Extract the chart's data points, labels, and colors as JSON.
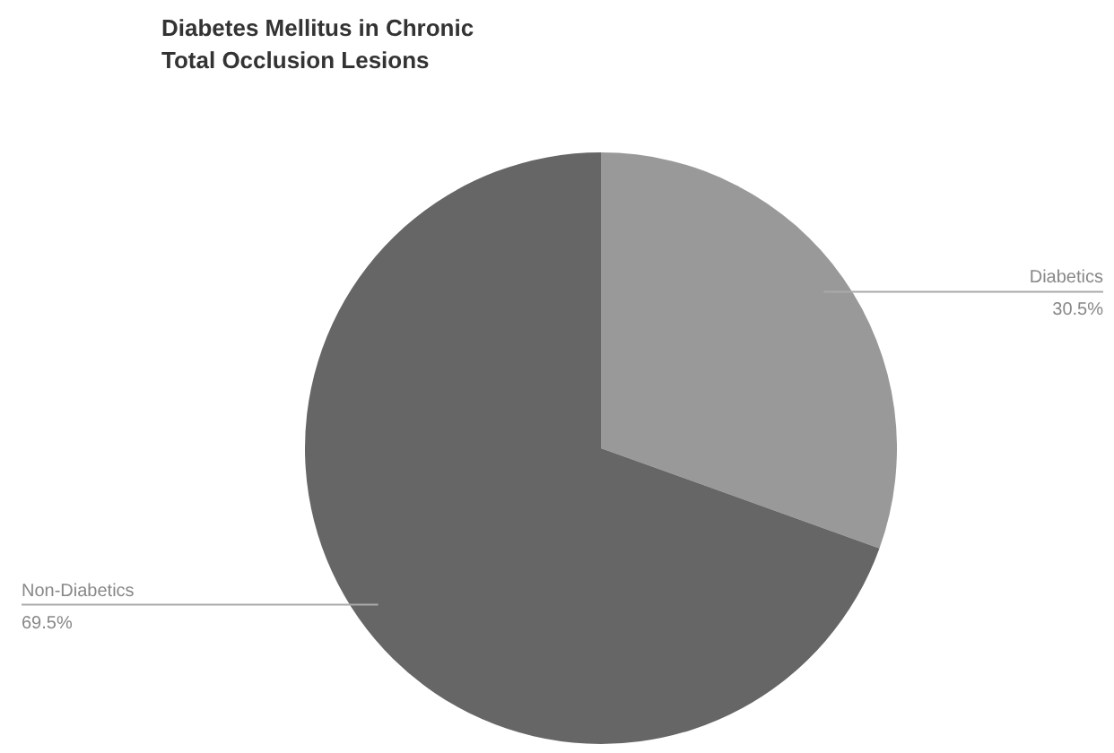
{
  "chart_data": {
    "type": "pie",
    "title": "Diabetes Mellitus in Chronic Total Occlusion Lesions",
    "categories": [
      "Diabetics",
      "Non-Diabetics"
    ],
    "values": [
      30.5,
      69.5
    ],
    "colors": [
      "#999999",
      "#666666"
    ],
    "value_labels": [
      "30.5%",
      "69.5%"
    ]
  }
}
